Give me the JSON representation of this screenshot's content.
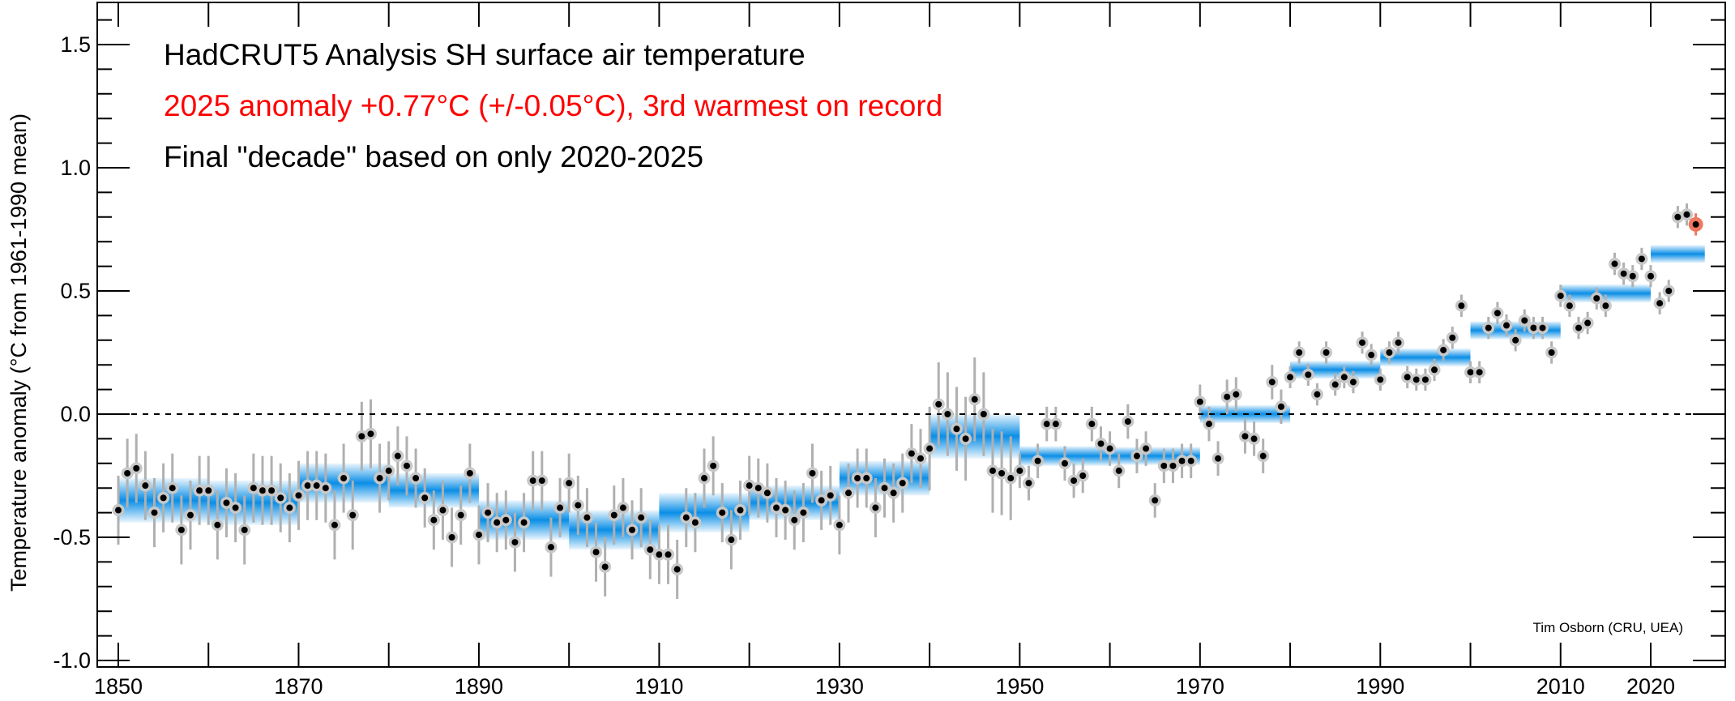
{
  "chart_data": {
    "type": "scatter",
    "title": "HadCRUT5 Analysis SH surface air temperature",
    "subtitle": "2025 anomaly +0.77°C (+/-0.05°C), 3rd warmest on record",
    "note": "Final \"decade\" based on only 2020-2025",
    "ylabel": "Temperature anomaly (°C from 1961-1990 mean)",
    "xlabel": "",
    "credit": "Tim Osborn (CRU, UEA)",
    "xlim": [
      1846,
      2030
    ],
    "ylim": [
      -1.03,
      1.65
    ],
    "xticks": [
      "1850",
      "1870",
      "1890",
      "1910",
      "1930",
      "1950",
      "1970",
      "1990",
      "2010",
      "2020"
    ],
    "yticks": [
      "-1.0",
      "-0.5",
      "0.0",
      "0.5",
      "1.0",
      "1.5"
    ],
    "reference_line": 0.0,
    "colors": {
      "annual": "#000000",
      "annual_halo": "#c8c8c8",
      "decadal": "#0a8ee6",
      "highlight": "#f07860",
      "errorbar": "#b0b0b0"
    },
    "start_year": 1850,
    "annual": [
      -0.39,
      -0.24,
      -0.22,
      -0.29,
      -0.4,
      -0.34,
      -0.3,
      -0.47,
      -0.41,
      -0.31,
      -0.31,
      -0.45,
      -0.36,
      -0.38,
      -0.47,
      -0.3,
      -0.31,
      -0.31,
      -0.34,
      -0.38,
      -0.33,
      -0.29,
      -0.29,
      -0.3,
      -0.45,
      -0.26,
      -0.41,
      -0.09,
      -0.08,
      -0.26,
      -0.23,
      -0.17,
      -0.21,
      -0.26,
      -0.34,
      -0.43,
      -0.39,
      -0.5,
      -0.41,
      -0.24,
      -0.49,
      -0.4,
      -0.44,
      -0.43,
      -0.52,
      -0.44,
      -0.27,
      -0.27,
      -0.54,
      -0.38,
      -0.28,
      -0.37,
      -0.42,
      -0.56,
      -0.62,
      -0.41,
      -0.38,
      -0.47,
      -0.42,
      -0.55,
      -0.57,
      -0.57,
      -0.63,
      -0.42,
      -0.44,
      -0.26,
      -0.21,
      -0.4,
      -0.51,
      -0.39,
      -0.29,
      -0.3,
      -0.32,
      -0.38,
      -0.39,
      -0.43,
      -0.4,
      -0.24,
      -0.35,
      -0.33,
      -0.45,
      -0.32,
      -0.26,
      -0.26,
      -0.38,
      -0.3,
      -0.32,
      -0.28,
      -0.16,
      -0.18,
      -0.14,
      0.04,
      0.0,
      -0.06,
      -0.1,
      0.06,
      0.0,
      -0.23,
      -0.24,
      -0.26,
      -0.23,
      -0.28,
      -0.19,
      -0.04,
      -0.04,
      -0.2,
      -0.27,
      -0.25,
      -0.04,
      -0.12,
      -0.14,
      -0.23,
      -0.03,
      -0.17,
      -0.14,
      -0.35,
      -0.21,
      -0.21,
      -0.19,
      -0.19,
      0.05,
      -0.04,
      -0.18,
      0.07,
      0.08,
      -0.09,
      -0.1,
      -0.17,
      0.13,
      0.03,
      0.15,
      0.25,
      0.16,
      0.08,
      0.25,
      0.12,
      0.15,
      0.13,
      0.29,
      0.24,
      0.14,
      0.25,
      0.29,
      0.15,
      0.14,
      0.14,
      0.18,
      0.26,
      0.31,
      0.44,
      0.17,
      0.17,
      0.35,
      0.41,
      0.36,
      0.3,
      0.38,
      0.35,
      0.35,
      0.25,
      0.48,
      0.44,
      0.35,
      0.37,
      0.47,
      0.44,
      0.61,
      0.57,
      0.56,
      0.63,
      0.56,
      0.45,
      0.5,
      0.8,
      0.81,
      0.77
    ],
    "annual_uncertainty_by_period": [
      {
        "start": 1850,
        "end": 1879,
        "value": 0.14
      },
      {
        "start": 1880,
        "end": 1939,
        "value": 0.12
      },
      {
        "start": 1940,
        "end": 1949,
        "value": 0.17
      },
      {
        "start": 1950,
        "end": 1979,
        "value": 0.07
      },
      {
        "start": 1980,
        "end": 2025,
        "value": 0.045
      }
    ],
    "decadal": [
      {
        "start": 1850,
        "end": 1860,
        "value": -0.35,
        "uncertainty": 0.09
      },
      {
        "start": 1860,
        "end": 1870,
        "value": -0.36,
        "uncertainty": 0.09
      },
      {
        "start": 1870,
        "end": 1880,
        "value": -0.28,
        "uncertainty": 0.08
      },
      {
        "start": 1880,
        "end": 1890,
        "value": -0.31,
        "uncertainty": 0.07
      },
      {
        "start": 1890,
        "end": 1900,
        "value": -0.43,
        "uncertainty": 0.08
      },
      {
        "start": 1900,
        "end": 1910,
        "value": -0.47,
        "uncertainty": 0.08
      },
      {
        "start": 1910,
        "end": 1920,
        "value": -0.4,
        "uncertainty": 0.08
      },
      {
        "start": 1920,
        "end": 1930,
        "value": -0.36,
        "uncertainty": 0.07
      },
      {
        "start": 1930,
        "end": 1940,
        "value": -0.26,
        "uncertainty": 0.07
      },
      {
        "start": 1940,
        "end": 1950,
        "value": -0.09,
        "uncertainty": 0.09
      },
      {
        "start": 1950,
        "end": 1960,
        "value": -0.17,
        "uncertainty": 0.04
      },
      {
        "start": 1960,
        "end": 1970,
        "value": -0.17,
        "uncertainty": 0.03
      },
      {
        "start": 1970,
        "end": 1980,
        "value": 0.0,
        "uncertainty": 0.025
      },
      {
        "start": 1980,
        "end": 1990,
        "value": 0.18,
        "uncertainty": 0.02
      },
      {
        "start": 1990,
        "end": 2000,
        "value": 0.23,
        "uncertainty": 0.02
      },
      {
        "start": 2000,
        "end": 2010,
        "value": 0.34,
        "uncertainty": 0.02
      },
      {
        "start": 2010,
        "end": 2020,
        "value": 0.49,
        "uncertainty": 0.02
      },
      {
        "start": 2020,
        "end": 2026,
        "value": 0.65,
        "uncertainty": 0.02
      }
    ],
    "highlight_year": 2025
  }
}
